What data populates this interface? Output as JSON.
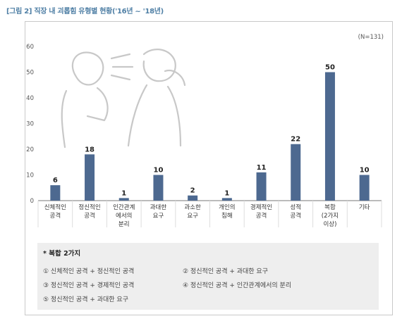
{
  "figure_title": "[그림 2] 직장 내 괴롭힘 유형별 현황('16년 ~ '18년)",
  "colors": {
    "bar": "#4d6990",
    "title": "#4f7fa5",
    "axis_text": "#555555",
    "grid": "#dddddd",
    "note_bg": "#eeeeee",
    "illustration": "#c8c8c8"
  },
  "illustration": "two-people-shouting-illustration",
  "chart_data": {
    "type": "bar",
    "title": "",
    "xlabel": "",
    "ylabel": "",
    "annotation": "(N=131)",
    "categories": [
      [
        "신체적인",
        "공격"
      ],
      [
        "정신적인",
        "공격"
      ],
      [
        "인간관계",
        "에서의",
        "분리"
      ],
      [
        "과대한",
        "요구"
      ],
      [
        "과소한",
        "요구"
      ],
      [
        "개인의",
        "침해"
      ],
      [
        "경제적인",
        "공격"
      ],
      [
        "성적",
        "공격"
      ],
      [
        "복합",
        "(2가지",
        "이상)"
      ],
      [
        "기타"
      ]
    ],
    "values": [
      6,
      18,
      1,
      10,
      2,
      1,
      11,
      22,
      50,
      10
    ],
    "ylim": [
      0,
      60
    ],
    "yticks": [
      0,
      10,
      20,
      30,
      40,
      50,
      60
    ],
    "grid": true,
    "legend": "none"
  },
  "note": {
    "title": "* 복합 2가지",
    "items": [
      "① 신체적인 공격 + 정신적인 공격",
      "② 정신적인 공격 + 과대한 요구",
      "③ 정신적인 공격 + 경제적인 공격",
      "④ 정신적인 공격 + 인간관계에서의 분리",
      "⑤ 정신적인 공격 + 과대한 요구"
    ]
  }
}
